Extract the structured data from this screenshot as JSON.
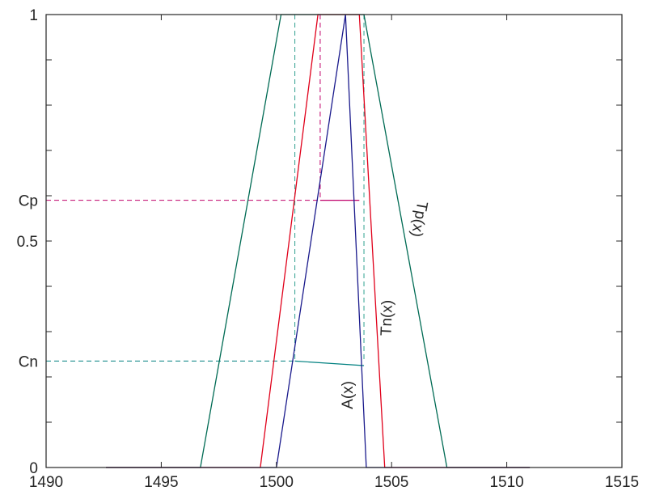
{
  "chart_data": {
    "type": "line",
    "xlim": [
      1490,
      1515
    ],
    "ylim": [
      0,
      1
    ],
    "grid": false,
    "x_ticks": [
      1490,
      1495,
      1500,
      1505,
      1510,
      1515
    ],
    "y_ticks": [
      {
        "value": 0,
        "label": "0"
      },
      {
        "value": 0.5,
        "label": "0.5"
      },
      {
        "value": 1,
        "label": "1"
      }
    ],
    "y_extra_labels": [
      {
        "value": 0.59,
        "label": "Cp"
      },
      {
        "value": 0.235,
        "label": "Cn"
      }
    ],
    "series": [
      {
        "color": "#006b54",
        "x": [
          1492.6,
          1496.7,
          1500.2,
          1503.8,
          1507.4,
          1511.0
        ],
        "y": [
          0,
          0,
          1,
          1,
          0,
          0
        ]
      },
      {
        "color": "#e0001a",
        "x": [
          1492.6,
          1499.3,
          1501.8,
          1503.6,
          1504.7,
          1511.0
        ],
        "y": [
          0,
          0,
          1,
          1,
          0,
          0
        ]
      },
      {
        "color": "#1a1a8c",
        "x": [
          1492.6,
          1500.0,
          1503.0,
          1503.9,
          1511.0
        ],
        "y": [
          0,
          0,
          1,
          0,
          0
        ]
      }
    ],
    "alpha_cuts": [
      {
        "color": "#c0006a",
        "y": 0.59,
        "x0": 1490,
        "x1": 1503.6
      },
      {
        "color": "#008080",
        "y": 0.235,
        "x0": 1490,
        "x1": 1503.8
      }
    ],
    "vertical_guides": [
      {
        "color": "#30a090",
        "x": 1500.8
      },
      {
        "color": "#30a090",
        "x": 1503.8
      },
      {
        "color": "#c0006a",
        "x": 1501.9
      }
    ],
    "annotations": [
      {
        "text": "Tp(x)",
        "x": 1506.0,
        "y": 0.55,
        "rotation": 100
      },
      {
        "text": "Tn(x)",
        "x": 1505.0,
        "y": 0.33,
        "rotation": -88
      },
      {
        "text": "A(x)",
        "x": 1503.3,
        "y": 0.16,
        "rotation": -90
      }
    ]
  }
}
